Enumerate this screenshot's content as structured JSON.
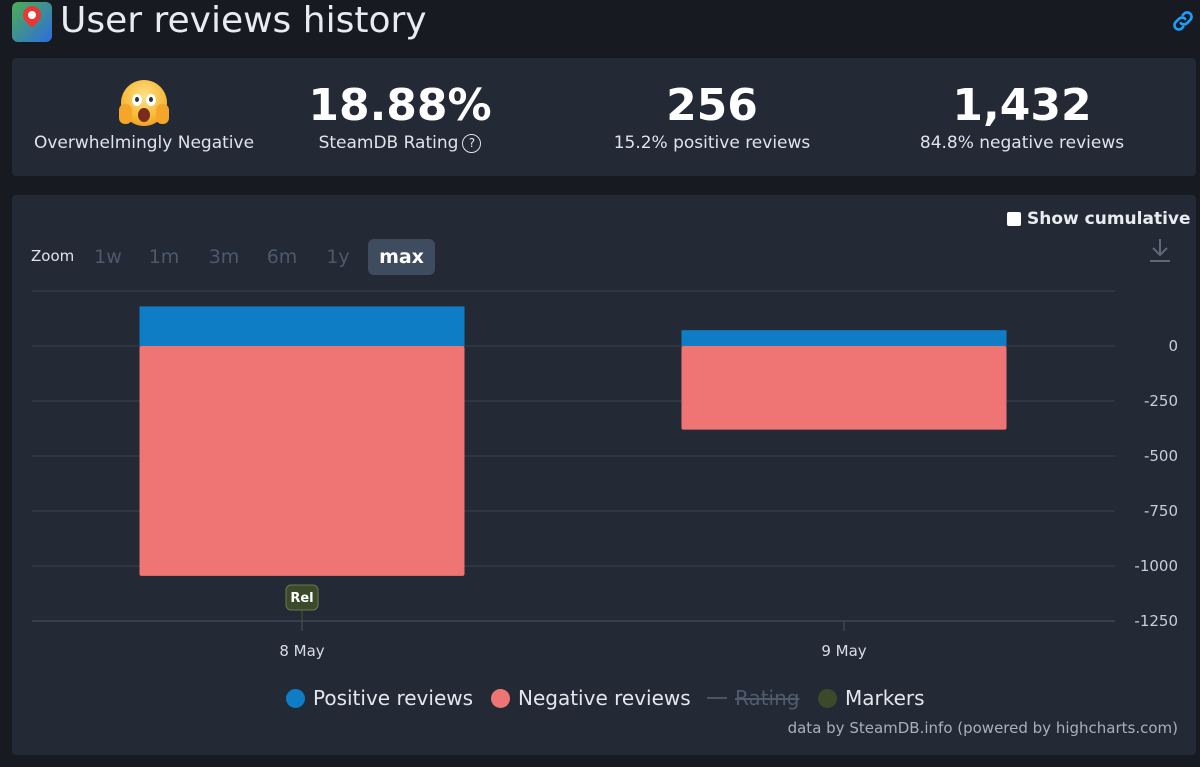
{
  "header": {
    "title": "User reviews history",
    "app_icon": "map-pin-app-icon",
    "link_icon": "link-icon"
  },
  "stats": {
    "rating_label": "Overwhelmingly Negative",
    "rating_emoji": "screaming-face-emoji",
    "steamdb_rating_value": "18.88%",
    "steamdb_rating_label": "SteamDB Rating",
    "help_glyph": "?",
    "positive_count": "256",
    "positive_label": "15.2% positive reviews",
    "negative_count": "1,432",
    "negative_label": "84.8% negative reviews"
  },
  "chart_controls": {
    "show_cumulative": "Show cumulative",
    "zoom_label": "Zoom",
    "zoom_options": [
      "1w",
      "1m",
      "3m",
      "6m",
      "1y",
      "max"
    ],
    "zoom_selected": "max",
    "download_icon": "download-icon"
  },
  "colors": {
    "positive": "#0e7dc5",
    "negative": "#ee7574",
    "markers": "#3b4a2b",
    "accent_negative_text": "#f06a5a",
    "background": "#171a21",
    "panel": "#232935"
  },
  "chart_data": {
    "type": "bar",
    "stacked": true,
    "categories": [
      "8 May",
      "9 May"
    ],
    "series": [
      {
        "name": "Positive reviews",
        "values": [
          180,
          72
        ]
      },
      {
        "name": "Negative reviews",
        "values": [
          -1045,
          -380
        ]
      }
    ],
    "yticks": [
      "0",
      "-250",
      "-500",
      "-750",
      "-1000",
      "-1250"
    ],
    "ylim": [
      -1250,
      250
    ],
    "marker": {
      "label": "Rel",
      "category": "8 May"
    },
    "grid": true
  },
  "legend": {
    "positive": "Positive reviews",
    "negative": "Negative reviews",
    "rating": "Rating",
    "markers": "Markers"
  },
  "credits": "data by SteamDB.info (powered by highcharts.com)"
}
